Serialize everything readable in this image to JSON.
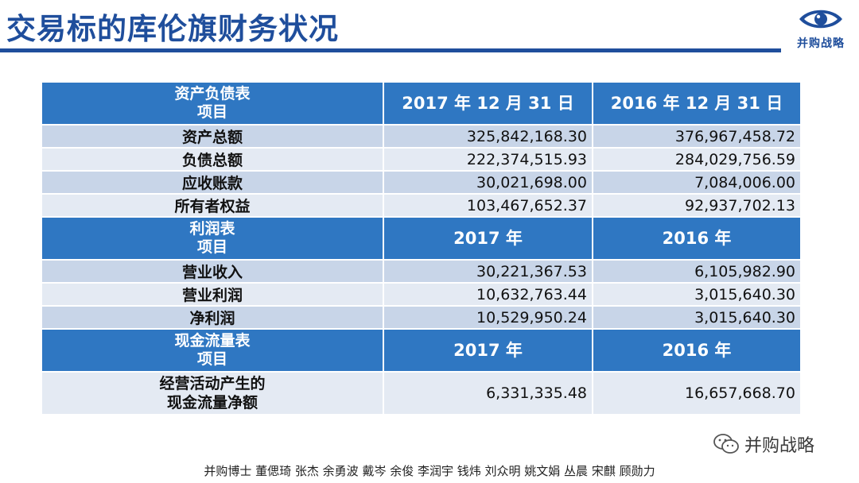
{
  "header": {
    "title": "交易标的库伦旗财务状况",
    "logo_text": "并购战略",
    "accent_color": "#1f4e9c"
  },
  "sections": [
    {
      "header_lines": [
        "资产负债表",
        "项目"
      ],
      "col1": "2017 年 12 月 31 日",
      "col2": "2016 年 12 月 31 日",
      "rows": [
        {
          "label": [
            "资产总额"
          ],
          "v1": "325,842,168.30",
          "v2": "376,967,458.72"
        },
        {
          "label": [
            "负债总额"
          ],
          "v1": "222,374,515.93",
          "v2": "284,029,756.59"
        },
        {
          "label": [
            "应收账款"
          ],
          "v1": "30,021,698.00",
          "v2": "7,084,006.00"
        },
        {
          "label": [
            "所有者权益"
          ],
          "v1": "103,467,652.37",
          "v2": "92,937,702.13"
        }
      ]
    },
    {
      "header_lines": [
        "利润表",
        "项目"
      ],
      "col1": "2017 年",
      "col2": "2016 年",
      "rows": [
        {
          "label": [
            "营业收入"
          ],
          "v1": "30,221,367.53",
          "v2": "6,105,982.90"
        },
        {
          "label": [
            "营业利润"
          ],
          "v1": "10,632,763.44",
          "v2": "3,015,640.30"
        },
        {
          "label": [
            "净利润"
          ],
          "v1": "10,529,950.24",
          "v2": "3,015,640.30"
        }
      ]
    },
    {
      "header_lines": [
        "现金流量表",
        "项目"
      ],
      "col1": "2017 年",
      "col2": "2016 年",
      "rows": [
        {
          "label": [
            "经营活动产生的",
            "现金流量净额"
          ],
          "v1": "6,331,335.48",
          "v2": "16,657,668.70"
        }
      ]
    }
  ],
  "watermark": {
    "text": "并购战略",
    "icon": "wechat-icon"
  },
  "footer": {
    "authors": "并购博士 董偲琦 张杰 余勇波 戴岑 余俊 李润宇 钱炜 刘众明 姚文娟 丛晨 宋麒 顾勋力"
  },
  "colors": {
    "table_header": "#2f77c2",
    "row_dark": "#c8d5e8",
    "row_light": "#e4eaf3"
  }
}
